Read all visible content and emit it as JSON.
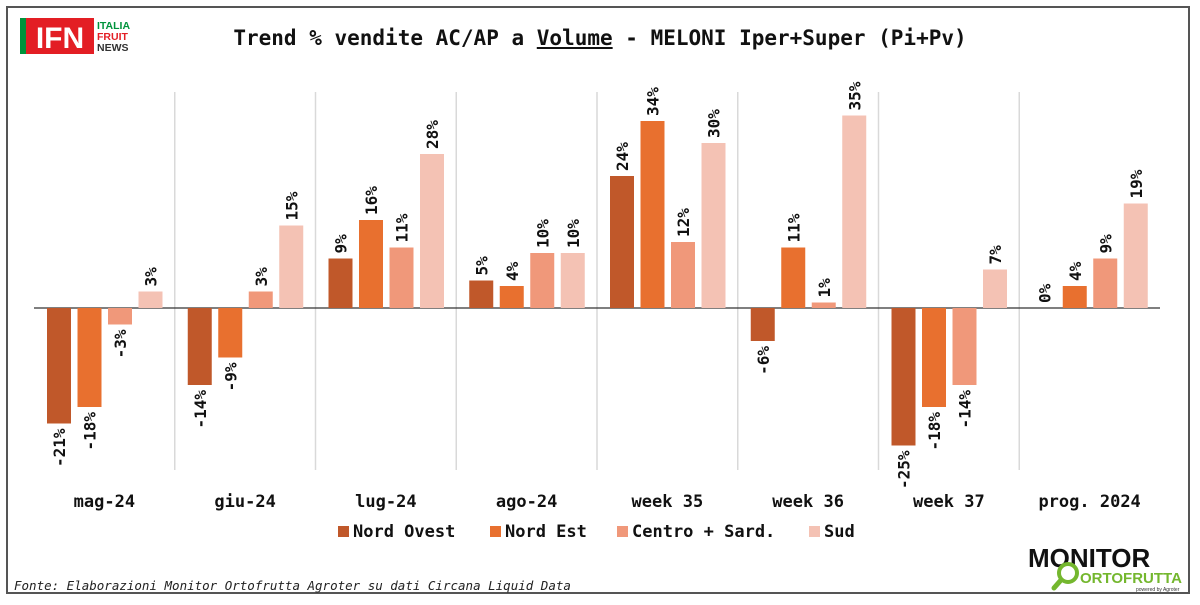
{
  "title": {
    "before": "Trend % vendite AC/AP a ",
    "underlined": "Volume",
    "after": " - MELONI Iper+Super (Pi+Pv)"
  },
  "source": "Fonte: Elaborazioni Monitor Ortofrutta Agroter su dati Circana Liquid Data",
  "logos": {
    "ifn": {
      "letters": "IFN",
      "line1": "ITALIA",
      "line2": "FRUIT",
      "line3": "NEWS"
    },
    "monitor": {
      "line1": "MONITOR",
      "line2": "ORTOFRUTTA",
      "tagline": "powered by Agroter"
    }
  },
  "colors": {
    "nord_ovest": "#C0582A",
    "nord_est": "#E8702F",
    "centro": "#F0987A",
    "sud": "#F4C2B4",
    "ifn_red": "#E31E24",
    "ifn_green": "#00933B",
    "monitor_green": "#74B72E"
  },
  "chart_data": {
    "type": "bar",
    "title": "Trend % vendite AC/AP a Volume - MELONI Iper+Super (Pi+Pv)",
    "categories": [
      "mag-24",
      "giu-24",
      "lug-24",
      "ago-24",
      "week 35",
      "week 36",
      "week 37",
      "prog. 2024"
    ],
    "series": [
      {
        "name": "Nord Ovest",
        "values": [
          -21,
          -14,
          9,
          5,
          24,
          -6,
          -25,
          0
        ]
      },
      {
        "name": "Nord Est",
        "values": [
          -18,
          -9,
          16,
          4,
          34,
          11,
          -18,
          4
        ]
      },
      {
        "name": "Centro + Sard.",
        "values": [
          -3,
          3,
          11,
          10,
          12,
          1,
          -14,
          9
        ]
      },
      {
        "name": "Sud",
        "values": [
          3,
          15,
          28,
          10,
          30,
          35,
          7,
          19
        ]
      }
    ],
    "value_suffix": "%",
    "legend_position": "bottom",
    "grid": false,
    "ylim": [
      -29,
      39
    ]
  }
}
